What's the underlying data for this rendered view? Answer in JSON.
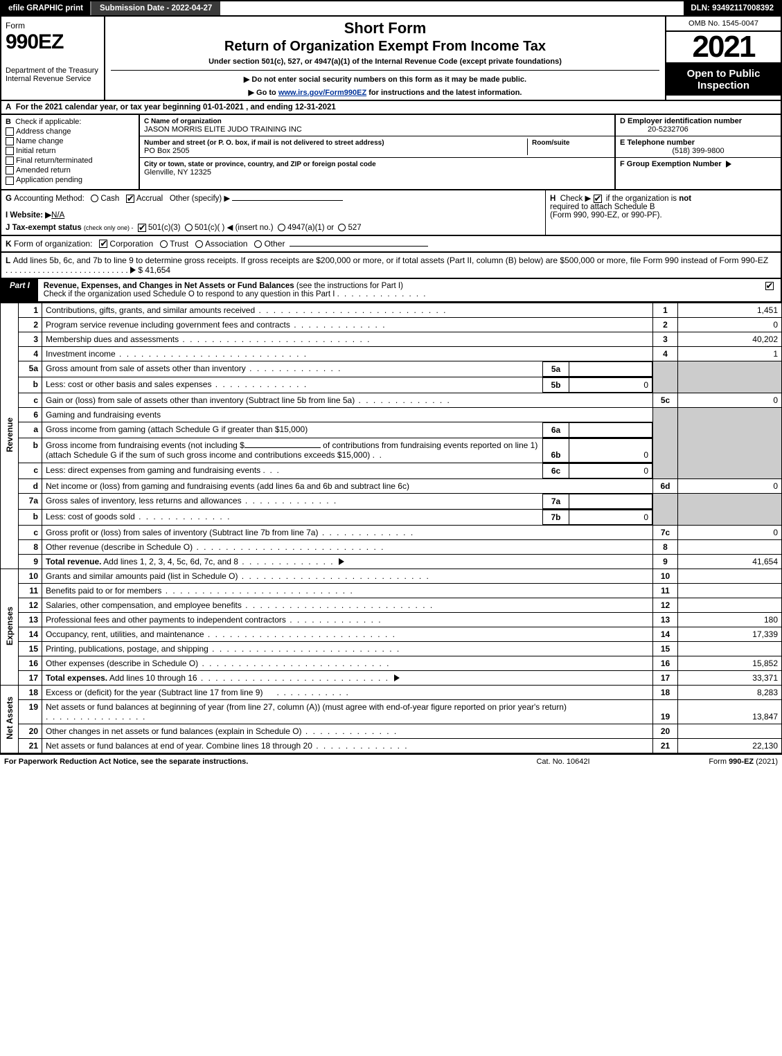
{
  "topbar": {
    "efile": "efile GRAPHIC print",
    "submit": "Submission Date - 2022-04-27",
    "dln": "DLN: 93492117008392"
  },
  "header": {
    "form_word": "Form",
    "form_num": "990EZ",
    "dept": "Department of the Treasury\nInternal Revenue Service",
    "title1": "Short Form",
    "title2": "Return of Organization Exempt From Income Tax",
    "subtitle": "Under section 501(c), 527, or 4947(a)(1) of the Internal Revenue Code (except private foundations)",
    "note1": "▶ Do not enter social security numbers on this form as it may be made public.",
    "note2_pre": "▶ Go to ",
    "note2_link": "www.irs.gov/Form990EZ",
    "note2_post": " for instructions and the latest information.",
    "omb": "OMB No. 1545-0047",
    "year": "2021",
    "open": "Open to Public Inspection"
  },
  "A": {
    "label": "A",
    "text": "For the 2021 calendar year, or tax year beginning 01-01-2021 , and ending 12-31-2021"
  },
  "B": {
    "label": "B",
    "title": "Check if applicable:",
    "items": [
      "Address change",
      "Name change",
      "Initial return",
      "Final return/terminated",
      "Amended return",
      "Application pending"
    ]
  },
  "C": {
    "name_lbl": "C Name of organization",
    "name": "JASON MORRIS ELITE JUDO TRAINING INC",
    "street_lbl": "Number and street (or P. O. box, if mail is not delivered to street address)",
    "room_lbl": "Room/suite",
    "street": "PO Box 2505",
    "city_lbl": "City or town, state or province, country, and ZIP or foreign postal code",
    "city": "Glenville, NY  12325"
  },
  "D": {
    "lbl": "D Employer identification number",
    "val": "20-5232706"
  },
  "E": {
    "lbl": "E Telephone number",
    "val": "(518) 399-9800"
  },
  "F": {
    "lbl": "F Group Exemption Number",
    "tri": "▶"
  },
  "G": {
    "label": "G",
    "text": "Accounting Method:",
    "opts": [
      "Cash",
      "Accrual",
      "Other (specify) ▶"
    ],
    "checked": 1
  },
  "H": {
    "label": "H",
    "text_a": "Check ▶",
    "text_b": "if the organization is",
    "text_c": "not",
    "text_d": "required to attach Schedule B",
    "text_e": "(Form 990, 990-EZ, or 990-PF).",
    "checked": true
  },
  "I": {
    "label": "I Website: ▶",
    "val": "N/A"
  },
  "J": {
    "label": "J Tax-exempt status",
    "note": "(check only one) -",
    "opts": [
      "501(c)(3)",
      "501(c)(  ) ◀ (insert no.)",
      "4947(a)(1) or",
      "527"
    ],
    "checked": 0
  },
  "K": {
    "label": "K",
    "text": "Form of organization:",
    "opts": [
      "Corporation",
      "Trust",
      "Association",
      "Other"
    ],
    "checked": 0
  },
  "L": {
    "label": "L",
    "text": "Add lines 5b, 6c, and 7b to line 9 to determine gross receipts. If gross receipts are $200,000 or more, or if total assets (Part II, column (B) below) are $500,000 or more, file Form 990 instead of Form 990-EZ",
    "amount": "$ 41,654"
  },
  "part1": {
    "tag": "Part I",
    "title": "Revenue, Expenses, and Changes in Net Assets or Fund Balances",
    "note": "(see the instructions for Part I)",
    "sub": "Check if the organization used Schedule O to respond to any question in this Part I",
    "checked": true
  },
  "sections": {
    "revenue": "Revenue",
    "expenses": "Expenses",
    "netassets": "Net Assets"
  },
  "lines": {
    "l1": {
      "n": "1",
      "t": "Contributions, gifts, grants, and similar amounts received",
      "num": "1",
      "val": "1,451"
    },
    "l2": {
      "n": "2",
      "t": "Program service revenue including government fees and contracts",
      "num": "2",
      "val": "0"
    },
    "l3": {
      "n": "3",
      "t": "Membership dues and assessments",
      "num": "3",
      "val": "40,202"
    },
    "l4": {
      "n": "4",
      "t": "Investment income",
      "num": "4",
      "val": "1"
    },
    "l5a": {
      "n": "5a",
      "t": "Gross amount from sale of assets other than inventory",
      "sub": "5a",
      "sv": ""
    },
    "l5b": {
      "n": "b",
      "t": "Less: cost or other basis and sales expenses",
      "sub": "5b",
      "sv": "0"
    },
    "l5c": {
      "n": "c",
      "t": "Gain or (loss) from sale of assets other than inventory (Subtract line 5b from line 5a)",
      "num": "5c",
      "val": "0"
    },
    "l6": {
      "n": "6",
      "t": "Gaming and fundraising events"
    },
    "l6a": {
      "n": "a",
      "t": "Gross income from gaming (attach Schedule G if greater than $15,000)",
      "sub": "6a",
      "sv": ""
    },
    "l6b": {
      "n": "b",
      "t1": "Gross income from fundraising events (not including $",
      "t2": "of contributions from fundraising events reported on line 1) (attach Schedule G if the sum of such gross income and contributions exceeds $15,000)",
      "sub": "6b",
      "sv": "0"
    },
    "l6c": {
      "n": "c",
      "t": "Less: direct expenses from gaming and fundraising events",
      "sub": "6c",
      "sv": "0"
    },
    "l6d": {
      "n": "d",
      "t": "Net income or (loss) from gaming and fundraising events (add lines 6a and 6b and subtract line 6c)",
      "num": "6d",
      "val": "0"
    },
    "l7a": {
      "n": "7a",
      "t": "Gross sales of inventory, less returns and allowances",
      "sub": "7a",
      "sv": ""
    },
    "l7b": {
      "n": "b",
      "t": "Less: cost of goods sold",
      "sub": "7b",
      "sv": "0"
    },
    "l7c": {
      "n": "c",
      "t": "Gross profit or (loss) from sales of inventory (Subtract line 7b from line 7a)",
      "num": "7c",
      "val": "0"
    },
    "l8": {
      "n": "8",
      "t": "Other revenue (describe in Schedule O)",
      "num": "8",
      "val": ""
    },
    "l9": {
      "n": "9",
      "t": "Total revenue.",
      "t2": " Add lines 1, 2, 3, 4, 5c, 6d, 7c, and 8",
      "num": "9",
      "val": "41,654"
    },
    "l10": {
      "n": "10",
      "t": "Grants and similar amounts paid (list in Schedule O)",
      "num": "10",
      "val": ""
    },
    "l11": {
      "n": "11",
      "t": "Benefits paid to or for members",
      "num": "11",
      "val": ""
    },
    "l12": {
      "n": "12",
      "t": "Salaries, other compensation, and employee benefits",
      "num": "12",
      "val": ""
    },
    "l13": {
      "n": "13",
      "t": "Professional fees and other payments to independent contractors",
      "num": "13",
      "val": "180"
    },
    "l14": {
      "n": "14",
      "t": "Occupancy, rent, utilities, and maintenance",
      "num": "14",
      "val": "17,339"
    },
    "l15": {
      "n": "15",
      "t": "Printing, publications, postage, and shipping",
      "num": "15",
      "val": ""
    },
    "l16": {
      "n": "16",
      "t": "Other expenses (describe in Schedule O)",
      "num": "16",
      "val": "15,852"
    },
    "l17": {
      "n": "17",
      "t": "Total expenses.",
      "t2": " Add lines 10 through 16",
      "num": "17",
      "val": "33,371"
    },
    "l18": {
      "n": "18",
      "t": "Excess or (deficit) for the year (Subtract line 17 from line 9)",
      "num": "18",
      "val": "8,283"
    },
    "l19": {
      "n": "19",
      "t": "Net assets or fund balances at beginning of year (from line 27, column (A)) (must agree with end-of-year figure reported on prior year's return)",
      "num": "19",
      "val": "13,847"
    },
    "l20": {
      "n": "20",
      "t": "Other changes in net assets or fund balances (explain in Schedule O)",
      "num": "20",
      "val": ""
    },
    "l21": {
      "n": "21",
      "t": "Net assets or fund balances at end of year. Combine lines 18 through 20",
      "num": "21",
      "val": "22,130"
    }
  },
  "footer": {
    "left": "For Paperwork Reduction Act Notice, see the separate instructions.",
    "mid": "Cat. No. 10642I",
    "right_a": "Form ",
    "right_b": "990-EZ",
    "right_c": " (2021)"
  },
  "colors": {
    "black": "#000000",
    "darkbar": "#3b3b3b",
    "grey": "#cccccc",
    "link": "#003399"
  }
}
